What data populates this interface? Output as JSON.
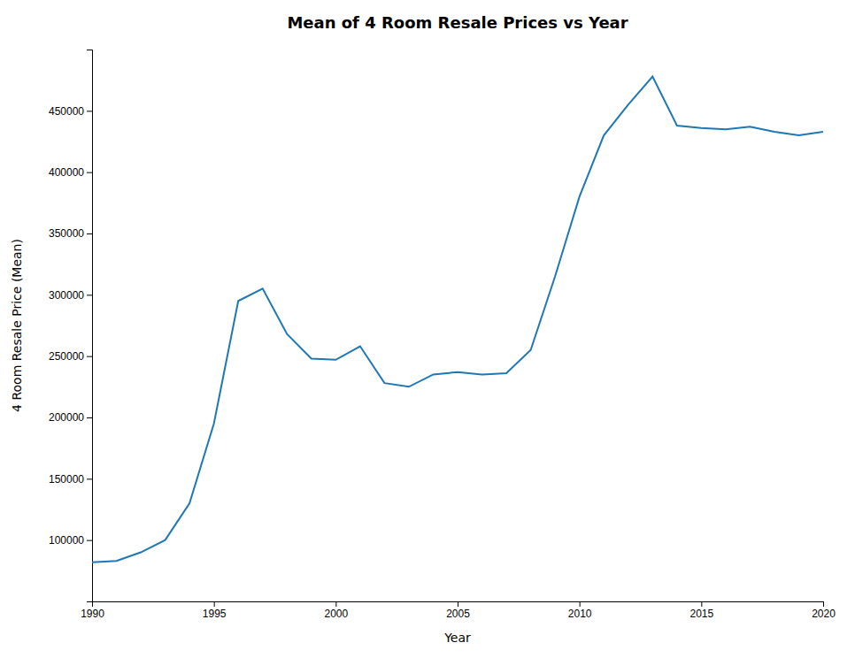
{
  "chart_data": {
    "type": "line",
    "title": "Mean of 4 Room Resale Prices vs Year",
    "xlabel": "Year",
    "ylabel": "4 Room Resale Price (Mean)",
    "x": [
      1990,
      1991,
      1992,
      1993,
      1994,
      1995,
      1996,
      1997,
      1998,
      1999,
      2000,
      2001,
      2002,
      2003,
      2004,
      2005,
      2006,
      2007,
      2008,
      2009,
      2010,
      2011,
      2012,
      2013,
      2014,
      2015,
      2016,
      2017,
      2018,
      2019,
      2020
    ],
    "values": [
      82000,
      83000,
      90000,
      100000,
      130000,
      195000,
      295000,
      305000,
      268000,
      248000,
      247000,
      258000,
      228000,
      225000,
      235000,
      237000,
      235000,
      236000,
      255000,
      315000,
      380000,
      430000,
      455000,
      478000,
      438000,
      436000,
      435000,
      437000,
      433000,
      430000,
      433000
    ],
    "color": "#1f77b4",
    "xlim": [
      1990,
      2020
    ],
    "ylim": [
      50000,
      500000
    ],
    "xticks": [
      1990,
      1995,
      2000,
      2005,
      2010,
      2015,
      2020
    ],
    "yticks": [
      100000,
      150000,
      200000,
      250000,
      300000,
      350000,
      400000,
      450000
    ],
    "grid": false
  }
}
